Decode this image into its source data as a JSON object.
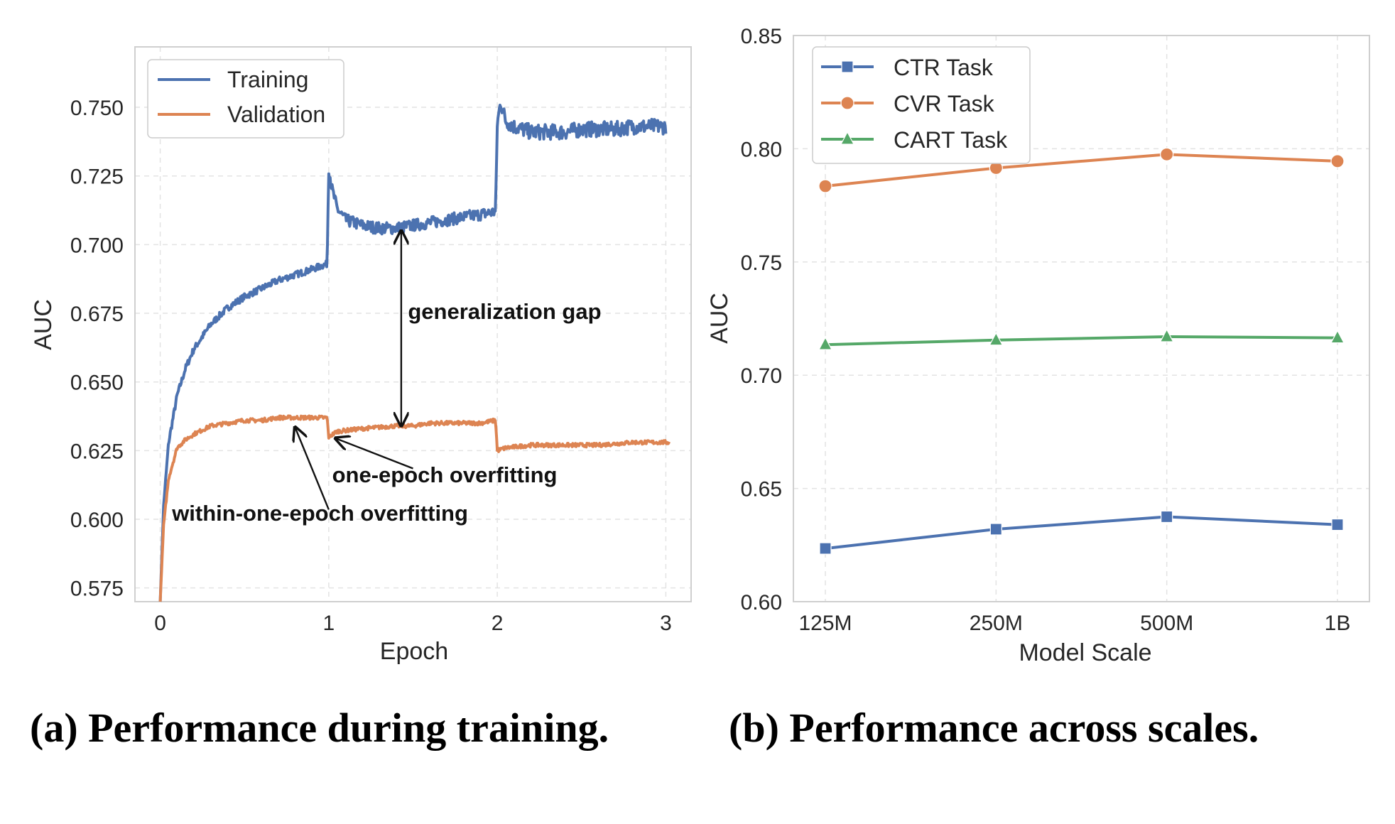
{
  "chart_data": [
    {
      "type": "line",
      "xlabel": "Epoch",
      "ylabel": "AUC",
      "xlim": [
        -0.15,
        3.15
      ],
      "ylim": [
        0.57,
        0.772
      ],
      "xticks": [
        0,
        1,
        2,
        3
      ],
      "xtick_labels": [
        "0",
        "1",
        "2",
        "3"
      ],
      "yticks": [
        0.575,
        0.6,
        0.625,
        0.65,
        0.675,
        0.7,
        0.725,
        0.75
      ],
      "ytick_labels": [
        "0.575",
        "0.600",
        "0.625",
        "0.650",
        "0.675",
        "0.700",
        "0.725",
        "0.750"
      ],
      "grid": true,
      "legend_position": "top-left",
      "series": [
        {
          "name": "Training",
          "color": "#4c72b0",
          "x": [
            0.0,
            0.02,
            0.05,
            0.1,
            0.15,
            0.2,
            0.3,
            0.4,
            0.5,
            0.6,
            0.7,
            0.8,
            0.9,
            0.99,
            1.0,
            1.02,
            1.05,
            1.1,
            1.2,
            1.3,
            1.4,
            1.5,
            1.6,
            1.7,
            1.8,
            1.9,
            1.99,
            2.0,
            2.02,
            2.05,
            2.1,
            2.2,
            2.3,
            2.4,
            2.5,
            2.6,
            2.7,
            2.8,
            2.9,
            3.0
          ],
          "values": [
            0.57,
            0.605,
            0.628,
            0.645,
            0.655,
            0.662,
            0.671,
            0.677,
            0.681,
            0.684,
            0.687,
            0.689,
            0.691,
            0.693,
            0.728,
            0.72,
            0.713,
            0.709,
            0.707,
            0.706,
            0.706,
            0.707,
            0.708,
            0.709,
            0.71,
            0.711,
            0.712,
            0.744,
            0.752,
            0.745,
            0.743,
            0.741,
            0.741,
            0.741,
            0.742,
            0.742,
            0.742,
            0.743,
            0.743,
            0.743
          ]
        },
        {
          "name": "Validation",
          "color": "#dd8452",
          "x": [
            0.0,
            0.02,
            0.05,
            0.1,
            0.15,
            0.2,
            0.3,
            0.4,
            0.5,
            0.6,
            0.7,
            0.8,
            0.9,
            0.99,
            1.0,
            1.05,
            1.2,
            1.4,
            1.5,
            1.6,
            1.7,
            1.8,
            1.9,
            1.99,
            2.0,
            2.05,
            2.2,
            2.4,
            2.6,
            2.8,
            3.0,
            3.02
          ],
          "values": [
            0.57,
            0.598,
            0.615,
            0.626,
            0.629,
            0.631,
            0.634,
            0.635,
            0.636,
            0.636,
            0.637,
            0.637,
            0.637,
            0.637,
            0.63,
            0.632,
            0.633,
            0.634,
            0.634,
            0.635,
            0.635,
            0.635,
            0.635,
            0.636,
            0.625,
            0.626,
            0.627,
            0.627,
            0.627,
            0.628,
            0.628,
            0.628
          ]
        }
      ],
      "annotations": [
        {
          "text": "generalization gap",
          "x": 1.47,
          "y": 0.673,
          "arrow_from": [
            1.43,
            0.705
          ],
          "arrow_to": [
            1.43,
            0.634
          ],
          "double": true
        },
        {
          "text": "one-epoch overfitting",
          "x": 1.02,
          "y": 0.6135,
          "arrow_from": [
            1.5,
            0.6185
          ],
          "arrow_to": [
            1.04,
            0.6295
          ]
        },
        {
          "text": "within-one-epoch overfitting",
          "x": 0.07,
          "y": 0.5995,
          "arrow_from": [
            1.0,
            0.6035
          ],
          "arrow_to": [
            0.8,
            0.6335
          ]
        }
      ]
    },
    {
      "type": "line",
      "xlabel": "Model Scale",
      "ylabel": "AUC",
      "categories": [
        "125M",
        "250M",
        "500M",
        "1B"
      ],
      "ylim": [
        0.6,
        0.85
      ],
      "yticks": [
        0.6,
        0.65,
        0.7,
        0.75,
        0.8,
        0.85
      ],
      "ytick_labels": [
        "0.60",
        "0.65",
        "0.70",
        "0.75",
        "0.80",
        "0.85"
      ],
      "grid": true,
      "legend_position": "top-left",
      "series": [
        {
          "name": "CTR Task",
          "color": "#4c72b0",
          "marker": "square",
          "values": [
            0.6235,
            0.632,
            0.6375,
            0.634
          ]
        },
        {
          "name": "CVR Task",
          "color": "#dd8452",
          "marker": "circle",
          "values": [
            0.7835,
            0.7915,
            0.7975,
            0.7945
          ]
        },
        {
          "name": "CART Task",
          "color": "#55a868",
          "marker": "triangle",
          "values": [
            0.7135,
            0.7155,
            0.717,
            0.7165
          ]
        }
      ]
    }
  ],
  "captions": {
    "left": "(a) Performance during training.",
    "right": "(b) Performance across scales."
  }
}
